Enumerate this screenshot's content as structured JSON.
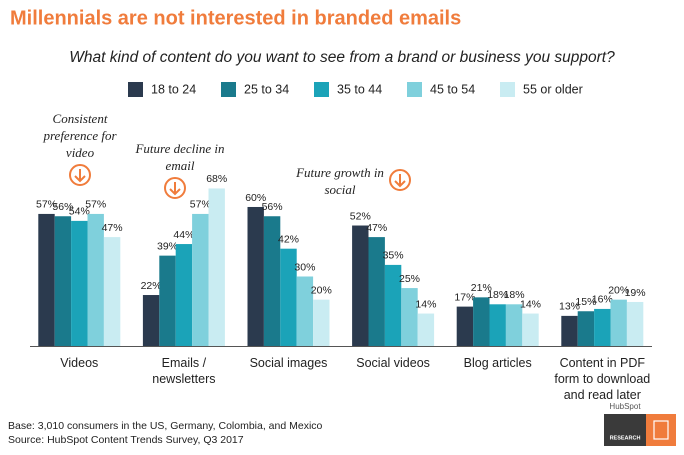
{
  "chart_data": {
    "type": "bar",
    "title": "Millennials are not interested in branded emails",
    "subtitle": "What kind of content do you want to see from a brand or business you support?",
    "categories": [
      "Videos",
      "Emails / newsletters",
      "Social images",
      "Social videos",
      "Blog articles",
      "Content in PDF form to download and read later"
    ],
    "series": [
      {
        "name": "18 to 24",
        "color": "#2b3a4e",
        "values": [
          57,
          22,
          60,
          52,
          17,
          13
        ],
        "value_labels": [
          "57%",
          "22%",
          "60%",
          "52%",
          "17%",
          "13%"
        ]
      },
      {
        "name": "25 to 34",
        "color": "#1a7a8c",
        "values": [
          56,
          39,
          56,
          47,
          21,
          15
        ],
        "value_labels": [
          "56%",
          "39%",
          "56%",
          "47%",
          "21%",
          "15%"
        ]
      },
      {
        "name": "35 to 44",
        "color": "#1ba3b8",
        "values": [
          54,
          44,
          42,
          35,
          18,
          16
        ],
        "value_labels": [
          "54%",
          "44%",
          "42%",
          "35%",
          "18%",
          "16%"
        ]
      },
      {
        "name": "45 to 54",
        "color": "#7fd0dc",
        "values": [
          57,
          57,
          30,
          25,
          18,
          20
        ],
        "value_labels": [
          "57%",
          "57%",
          "30%",
          "25%",
          "18%",
          "20%"
        ]
      },
      {
        "name": "55 or older",
        "color": "#c9ecf2",
        "values": [
          47,
          68,
          20,
          14,
          14,
          19
        ],
        "value_labels": [
          "47%",
          "68%",
          "20%",
          "14%",
          "14%",
          "19%"
        ]
      }
    ],
    "ylim": [
      0,
      100
    ],
    "annotations": [
      "Consistent preference for video",
      "Future decline in email",
      "Future growth in social"
    ],
    "notes": [
      "Base: 3,010 consumers in the US, Germany, Colombia, and Mexico",
      "Source: HubSpot Content Trends Survey, Q3 2017"
    ]
  },
  "branding": {
    "brand": "HubSpot",
    "label": "RESEARCH"
  }
}
